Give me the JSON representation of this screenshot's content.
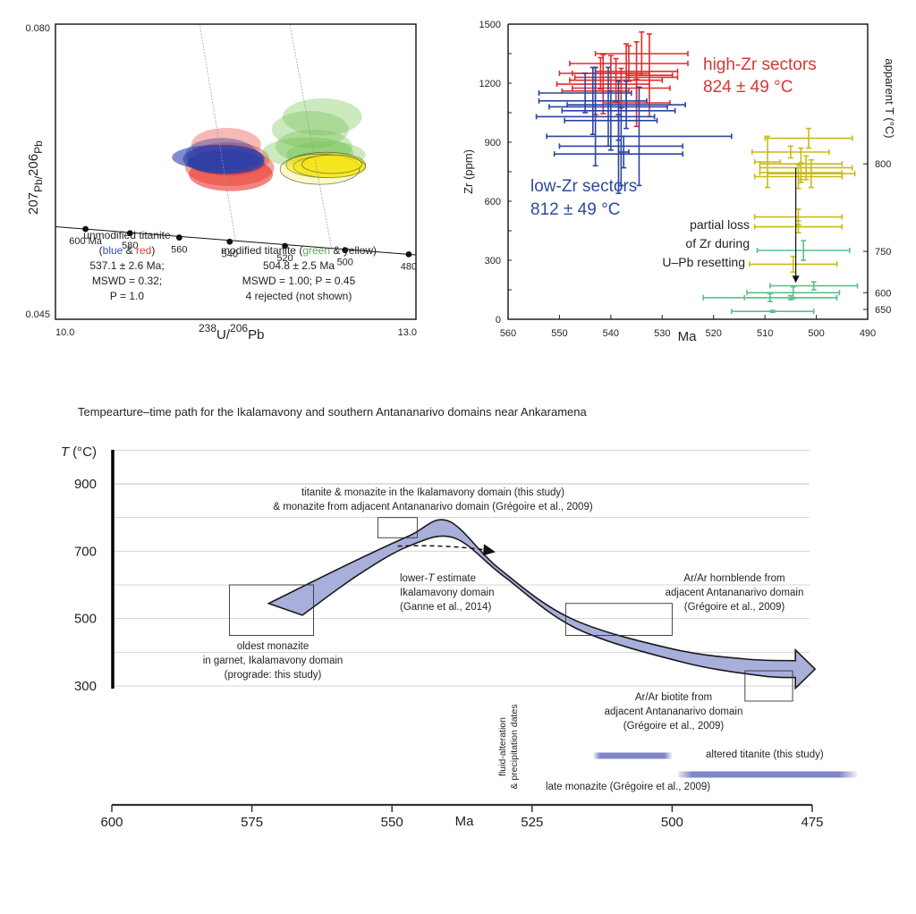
{
  "chart_data": [
    {
      "id": "concordia",
      "type": "scatter",
      "subtype": "Tera-Wasserburg concordia diagram with error ellipses",
      "xlabel_parts": [
        "238",
        "U/",
        "206",
        "Pb"
      ],
      "ylabel_parts": [
        "207",
        "Pb/",
        "206",
        "Pb"
      ],
      "xlim": [
        10.0,
        13.0
      ],
      "ylim": [
        0.045,
        0.08
      ],
      "xtick_labels": [
        "10.0",
        "13.0"
      ],
      "ytick_labels": [
        "0.080",
        "0.045"
      ],
      "concordia_ticks": [
        {
          "age": 600,
          "label": "600 Ma",
          "x": 10.25,
          "y": 0.0557
        },
        {
          "age": 580,
          "label": "580",
          "x": 10.62,
          "y": 0.0552
        },
        {
          "age": 560,
          "label": "560",
          "x": 11.03,
          "y": 0.0547
        },
        {
          "age": 540,
          "label": "540",
          "x": 11.45,
          "y": 0.0542
        },
        {
          "age": 520,
          "label": "520",
          "x": 11.91,
          "y": 0.0537
        },
        {
          "age": 500,
          "label": "500",
          "x": 12.41,
          "y": 0.0532
        },
        {
          "age": 480,
          "label": "480",
          "x": 12.94,
          "y": 0.0527
        }
      ],
      "discordia_lines": [
        {
          "name": "unmodified",
          "from": [
            11.2,
            0.08
          ],
          "to": [
            11.5,
            0.0542
          ]
        },
        {
          "name": "modified",
          "from": [
            11.95,
            0.08
          ],
          "to": [
            12.3,
            0.0532
          ]
        }
      ],
      "ellipse_groups": [
        {
          "name": "red",
          "color": "#e8362b",
          "ellipses": [
            {
              "cx": 11.42,
              "cy": 0.0657,
              "rx": 0.29,
              "ry": 0.002,
              "opacity": 0.35
            },
            {
              "cx": 11.45,
              "cy": 0.063,
              "rx": 0.37,
              "ry": 0.0022,
              "opacity": 0.45
            },
            {
              "cx": 11.46,
              "cy": 0.0622,
              "rx": 0.35,
              "ry": 0.002,
              "opacity": 0.6
            },
            {
              "cx": 11.44,
              "cy": 0.064,
              "rx": 0.34,
              "ry": 0.002,
              "opacity": 0.4
            }
          ]
        },
        {
          "name": "blue",
          "color": "#2b3fa8",
          "ellipses": [
            {
              "cx": 11.35,
              "cy": 0.0642,
              "rx": 0.38,
              "ry": 0.0015,
              "opacity": 0.6
            },
            {
              "cx": 11.4,
              "cy": 0.064,
              "rx": 0.34,
              "ry": 0.0017,
              "opacity": 0.6
            },
            {
              "cx": 11.38,
              "cy": 0.0645,
              "rx": 0.3,
              "ry": 0.002,
              "opacity": 0.4
            },
            {
              "cx": 11.42,
              "cy": 0.0636,
              "rx": 0.32,
              "ry": 0.0014,
              "opacity": 0.7
            }
          ]
        },
        {
          "name": "green",
          "color": "#6dbf4b",
          "ellipses": [
            {
              "cx": 12.22,
              "cy": 0.069,
              "rx": 0.33,
              "ry": 0.0022,
              "opacity": 0.35
            },
            {
              "cx": 12.12,
              "cy": 0.0675,
              "rx": 0.32,
              "ry": 0.0022,
              "opacity": 0.35
            },
            {
              "cx": 12.15,
              "cy": 0.0655,
              "rx": 0.32,
              "ry": 0.002,
              "opacity": 0.35
            },
            {
              "cx": 12.1,
              "cy": 0.0648,
              "rx": 0.38,
              "ry": 0.0018,
              "opacity": 0.35
            },
            {
              "cx": 12.25,
              "cy": 0.0645,
              "rx": 0.33,
              "ry": 0.0016,
              "opacity": 0.35
            }
          ]
        },
        {
          "name": "yellow",
          "color": "#f5e61c",
          "ellipses": [
            {
              "cx": 12.25,
              "cy": 0.0633,
              "rx": 0.33,
              "ry": 0.0015,
              "opacity": 0.6
            },
            {
              "cx": 12.28,
              "cy": 0.0631,
              "rx": 0.3,
              "ry": 0.0013,
              "opacity": 0.8
            },
            {
              "cx": 12.2,
              "cy": 0.0628,
              "rx": 0.33,
              "ry": 0.0018,
              "opacity": 0.25
            },
            {
              "cx": 12.3,
              "cy": 0.0634,
              "rx": 0.25,
              "ry": 0.0011,
              "opacity": 0.8
            }
          ]
        }
      ],
      "annotations": {
        "unmodified": {
          "line1": "unmodified titanite",
          "paren_open": "(",
          "blue_word": "blue",
          "amp": " & ",
          "red_word": "red",
          "paren_close": ")",
          "age": "537.1 ± 2.6 Ma;",
          "mswd": "MSWD = 0.32;",
          "p": "P = 1.0"
        },
        "modified": {
          "prefix": "modified titanite (",
          "green_word": "green",
          "suffix": " & yellow)",
          "age": "504.8 ± 2.5 Ma",
          "mswd_p": "MSWD = 1.00; P = 0.45",
          "rejected": "4 rejected (not shown)"
        }
      },
      "colors": {
        "blue_text": "#3a4fa3",
        "red_text": "#e23a3a",
        "green_text": "#5fa35f"
      }
    },
    {
      "id": "zr-vs-age",
      "type": "scatter",
      "subtype": "error-bar plot",
      "xlabel": "Ma",
      "ylabel": "Zr (ppm)",
      "y2label": "apparent T (°C)",
      "xlim": [
        560,
        490
      ],
      "ylim": [
        0,
        1500
      ],
      "xticks": [
        560,
        550,
        540,
        530,
        520,
        510,
        500,
        490
      ],
      "yticks": [
        0,
        300,
        600,
        900,
        1200,
        1500
      ],
      "y2ticks": [
        {
          "label": "800",
          "zr": 790
        },
        {
          "label": "750",
          "zr": 345
        },
        {
          "label": "600",
          "zr": 135
        },
        {
          "label": "650",
          "zr": 50
        }
      ],
      "series": [
        {
          "name": "high-Zr sectors",
          "color": "#e32b2b",
          "points": [
            {
              "x": 534.0,
              "xerr": 9.0,
              "y": 1350,
              "yerr": 110
            },
            {
              "x": 536.5,
              "xerr": 11.5,
              "y": 1300,
              "yerr": 90
            },
            {
              "x": 532.5,
              "xerr": 4.5,
              "y": 1240,
              "yerr": 210
            },
            {
              "x": 535.0,
              "xerr": 8.0,
              "y": 1260,
              "yerr": 150
            },
            {
              "x": 540.0,
              "xerr": 7.5,
              "y": 1250,
              "yerr": 90
            },
            {
              "x": 537.0,
              "xerr": 10.0,
              "y": 1230,
              "yerr": 170
            },
            {
              "x": 542.0,
              "xerr": 8.0,
              "y": 1250,
              "yerr": 80
            },
            {
              "x": 539.0,
              "xerr": 9.0,
              "y": 1215,
              "yerr": 110
            },
            {
              "x": 541.5,
              "xerr": 9.0,
              "y": 1195,
              "yerr": 150
            },
            {
              "x": 538.0,
              "xerr": 9.5,
              "y": 1175,
              "yerr": 100
            },
            {
              "x": 535.0,
              "xerr": 6.5,
              "y": 1100,
              "yerr": 120
            },
            {
              "x": 543.0,
              "xerr": 6.5,
              "y": 1160,
              "yerr": 120
            }
          ]
        },
        {
          "name": "low-Zr sectors",
          "color": "#2b44a0",
          "points": [
            {
              "x": 545.0,
              "xerr": 9.0,
              "y": 1150,
              "yerr": 100
            },
            {
              "x": 543.5,
              "xerr": 10.5,
              "y": 1110,
              "yerr": 170
            },
            {
              "x": 537.0,
              "xerr": 11.5,
              "y": 1090,
              "yerr": 120
            },
            {
              "x": 540.5,
              "xerr": 11.5,
              "y": 1080,
              "yerr": 200
            },
            {
              "x": 538.5,
              "xerr": 11.0,
              "y": 1060,
              "yerr": 150
            },
            {
              "x": 543.0,
              "xerr": 11.5,
              "y": 1030,
              "yerr": 250
            },
            {
              "x": 540.0,
              "xerr": 9.0,
              "y": 1010,
              "yerr": 150
            },
            {
              "x": 534.5,
              "xerr": 18.0,
              "y": 930,
              "yerr": 250
            },
            {
              "x": 538.0,
              "xerr": 12.0,
              "y": 880,
              "yerr": 200
            },
            {
              "x": 538.5,
              "xerr": 12.5,
              "y": 840,
              "yerr": 200
            },
            {
              "x": 537.5,
              "xerr": 1.0,
              "y": 850,
              "yerr": 80
            }
          ]
        },
        {
          "name": "yellow (modified, high)",
          "color": "#c8bb17",
          "points": [
            {
              "x": 501.5,
              "xerr": 8.5,
              "y": 920,
              "yerr": 50
            },
            {
              "x": 505.0,
              "xerr": 7.5,
              "y": 850,
              "yerr": 30
            },
            {
              "x": 503.0,
              "xerr": 8.0,
              "y": 790,
              "yerr": 80
            },
            {
              "x": 502.0,
              "xerr": 9.0,
              "y": 770,
              "yerr": 60
            },
            {
              "x": 503.0,
              "xerr": 8.0,
              "y": 745,
              "yerr": 50
            },
            {
              "x": 501.0,
              "xerr": 8.5,
              "y": 740,
              "yerr": 70
            },
            {
              "x": 509.5,
              "xerr": 2.5,
              "y": 800,
              "yerr": 130
            },
            {
              "x": 503.5,
              "xerr": 8.5,
              "y": 725,
              "yerr": 60
            }
          ]
        },
        {
          "name": "yellow (modified, low)",
          "color": "#c8bb17",
          "points": [
            {
              "x": 503.5,
              "xerr": 8.5,
              "y": 520,
              "yerr": 40
            },
            {
              "x": 503.5,
              "xerr": 8.5,
              "y": 470,
              "yerr": 30
            },
            {
              "x": 504.5,
              "xerr": 8.5,
              "y": 280,
              "yerr": 40
            }
          ]
        },
        {
          "name": "green (modified)",
          "color": "#5cc08a",
          "points": [
            {
              "x": 502.5,
              "xerr": 9.0,
              "y": 350,
              "yerr": 50
            },
            {
              "x": 500.5,
              "xerr": 8.5,
              "y": 170,
              "yerr": 20
            },
            {
              "x": 504.5,
              "xerr": 9.0,
              "y": 135,
              "yerr": 30
            },
            {
              "x": 505.0,
              "xerr": 9.0,
              "y": 110,
              "yerr": 10
            },
            {
              "x": 509.0,
              "xerr": 13.0,
              "y": 110,
              "yerr": 20
            },
            {
              "x": 508.5,
              "xerr": 8.0,
              "y": 40,
              "yerr": 5
            }
          ]
        }
      ],
      "annotations": {
        "high_zr_line1": "high-Zr sectors",
        "high_zr_line2": "824 ± 49 °C",
        "low_zr_line1": "low-Zr sectors",
        "low_zr_line2": "812 ± 49 °C",
        "loss_line1": "partial loss",
        "loss_line2": "of Zr during",
        "loss_line3": "U–Pb resetting",
        "arrow": {
          "x": 504,
          "from_y": 770,
          "to_y": 185
        }
      }
    },
    {
      "id": "t-t-path",
      "type": "line",
      "subtype": "temperature–time path schematic",
      "title": "Tempearture–time path for the Ikalamavony and southern Antananarivo domains near Ankaramena",
      "ylabel_italic": "T",
      "ylabel_rest": " (°C)",
      "xlabel": "Ma",
      "xlim": [
        600,
        475
      ],
      "ylim": [
        300,
        1000
      ],
      "xticks": [
        600,
        575,
        550,
        525,
        500,
        475
      ],
      "ytick_labels": [
        900,
        700,
        500,
        300
      ],
      "gridlines": [
        1000,
        900,
        800,
        700,
        600,
        500,
        400,
        300
      ],
      "path_upper": [
        [
          572,
          545
        ],
        [
          558,
          660
        ],
        [
          547,
          745
        ],
        [
          540,
          790
        ],
        [
          531,
          650
        ],
        [
          518,
          500
        ],
        [
          500,
          410
        ],
        [
          487,
          380
        ],
        [
          478,
          375
        ]
      ],
      "path_lower": [
        [
          566,
          510
        ],
        [
          556,
          630
        ],
        [
          547,
          715
        ],
        [
          539,
          740
        ],
        [
          530,
          625
        ],
        [
          517,
          470
        ],
        [
          498,
          370
        ],
        [
          484,
          330
        ],
        [
          478,
          325
        ]
      ],
      "boxes": [
        {
          "x0": 579,
          "x1": 564,
          "y0": 450,
          "y1": 600,
          "label": "oldest-monazite"
        },
        {
          "x0": 552.5,
          "x1": 545.5,
          "y0": 740,
          "y1": 800,
          "label": "peak"
        },
        {
          "x0": 519,
          "x1": 500,
          "y0": 450,
          "y1": 545,
          "label": "hornblende"
        },
        {
          "x0": 487,
          "x1": 478.5,
          "y0": 255,
          "y1": 345,
          "label": "biotite"
        }
      ],
      "dashed_arrow": {
        "from": [
          549,
          715
        ],
        "to": [
          532,
          695
        ]
      },
      "labels": {
        "peak_line1": "titanite & monazite in the Ikalamavony domain (this study)",
        "peak_line2": "& monazite from adjacent Antananarivo domain (Grégoire et al., 2009)",
        "lowerT_line1_a": "lower-",
        "lowerT_line1_italic": "T",
        "lowerT_line1_b": " estimate",
        "lowerT_line2": "Ikalamavony domain",
        "lowerT_line3": "(Ganne et al., 2014)",
        "oldest_line1": "oldest monazite",
        "oldest_line2": "in garnet, Ikalamavony domain",
        "oldest_line3": "(prograde: this study)",
        "hbl_line1": "Ar/Ar hornblende from",
        "hbl_line2": "adjacent Antananarivo domain",
        "hbl_line3": "(Grégoire et al., 2009)",
        "bt_line1": "Ar/Ar biotite from",
        "bt_line2": "adjacent Antananarivo domain",
        "bt_line3": "(Grégoire et al., 2009)",
        "fluid_line1": "fluid-alteration",
        "fluid_line2": "& precipitation dates"
      },
      "range_bars": [
        {
          "name": "altered titanite (this study)",
          "from": 514,
          "to": 500,
          "color": "#7f86c8"
        },
        {
          "name": "late monazite (Grégoire et al., 2009)",
          "from": 499,
          "to": 467,
          "color": "#7f86c8"
        }
      ],
      "colors": {
        "path_fill": "#a9afdb",
        "path_stroke": "#1a1a1a",
        "grid": "#d4d4d4"
      }
    }
  ]
}
